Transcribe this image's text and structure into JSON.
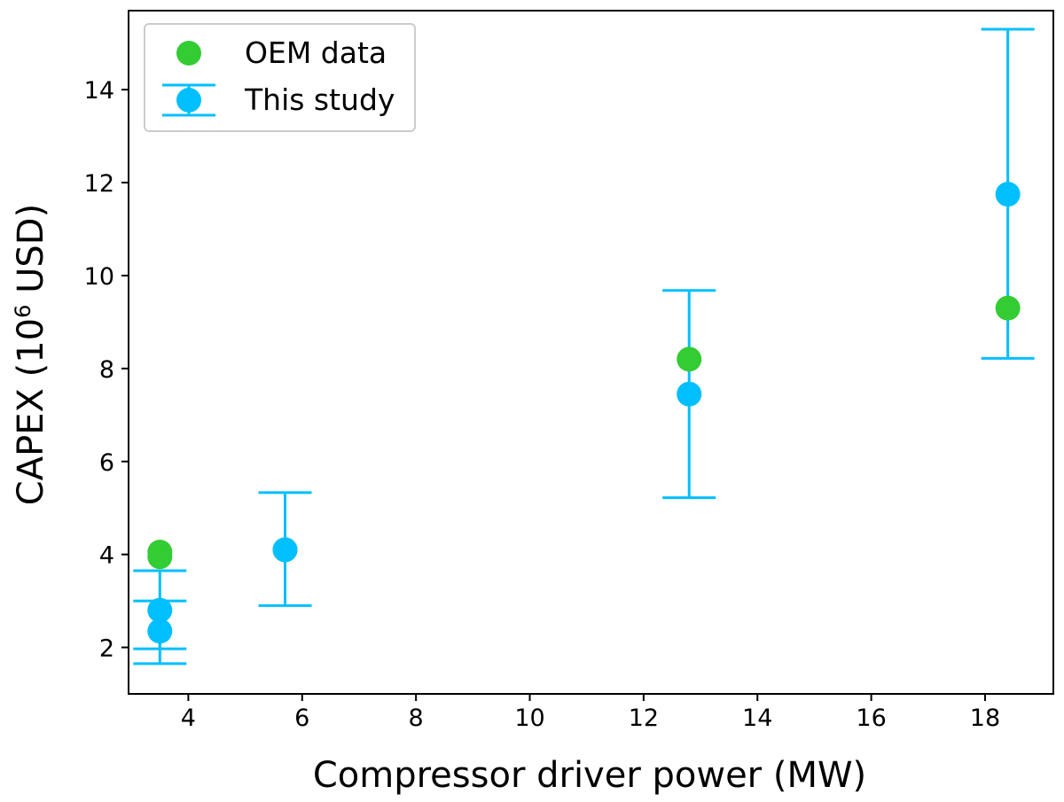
{
  "chart_data": {
    "type": "scatter",
    "xlabel": "Compressor driver power (MW)",
    "ylabel_base": "CAPEX (10",
    "ylabel_sup": "6",
    "ylabel_tail": " USD)",
    "xlim": [
      2.95,
      19.2
    ],
    "ylim": [
      1.0,
      15.7
    ],
    "x_ticks": [
      4,
      6,
      8,
      10,
      12,
      14,
      16,
      18
    ],
    "y_ticks": [
      2,
      4,
      6,
      8,
      10,
      12,
      14
    ],
    "grid": false,
    "legend_position": "top-left",
    "series": [
      {
        "name": "OEM data",
        "color": "#33cc33",
        "marker": "circle",
        "points": [
          {
            "x": 3.5,
            "y": 4.05
          },
          {
            "x": 3.5,
            "y": 3.95
          },
          {
            "x": 5.7,
            "y": 4.1
          },
          {
            "x": 12.8,
            "y": 8.2
          },
          {
            "x": 18.4,
            "y": 9.3
          }
        ]
      },
      {
        "name": "This study",
        "color": "#00bfff",
        "marker": "circle",
        "errorbars": true,
        "points": [
          {
            "x": 3.5,
            "y": 2.8,
            "ymin": 1.97,
            "ymax": 3.65
          },
          {
            "x": 3.5,
            "y": 2.35,
            "ymin": 1.65,
            "ymax": 3.0
          },
          {
            "x": 5.7,
            "y": 4.1,
            "ymin": 2.9,
            "ymax": 5.33
          },
          {
            "x": 12.8,
            "y": 7.45,
            "ymin": 5.22,
            "ymax": 9.68
          },
          {
            "x": 18.4,
            "y": 11.75,
            "ymin": 8.22,
            "ymax": 15.3
          }
        ]
      }
    ]
  }
}
